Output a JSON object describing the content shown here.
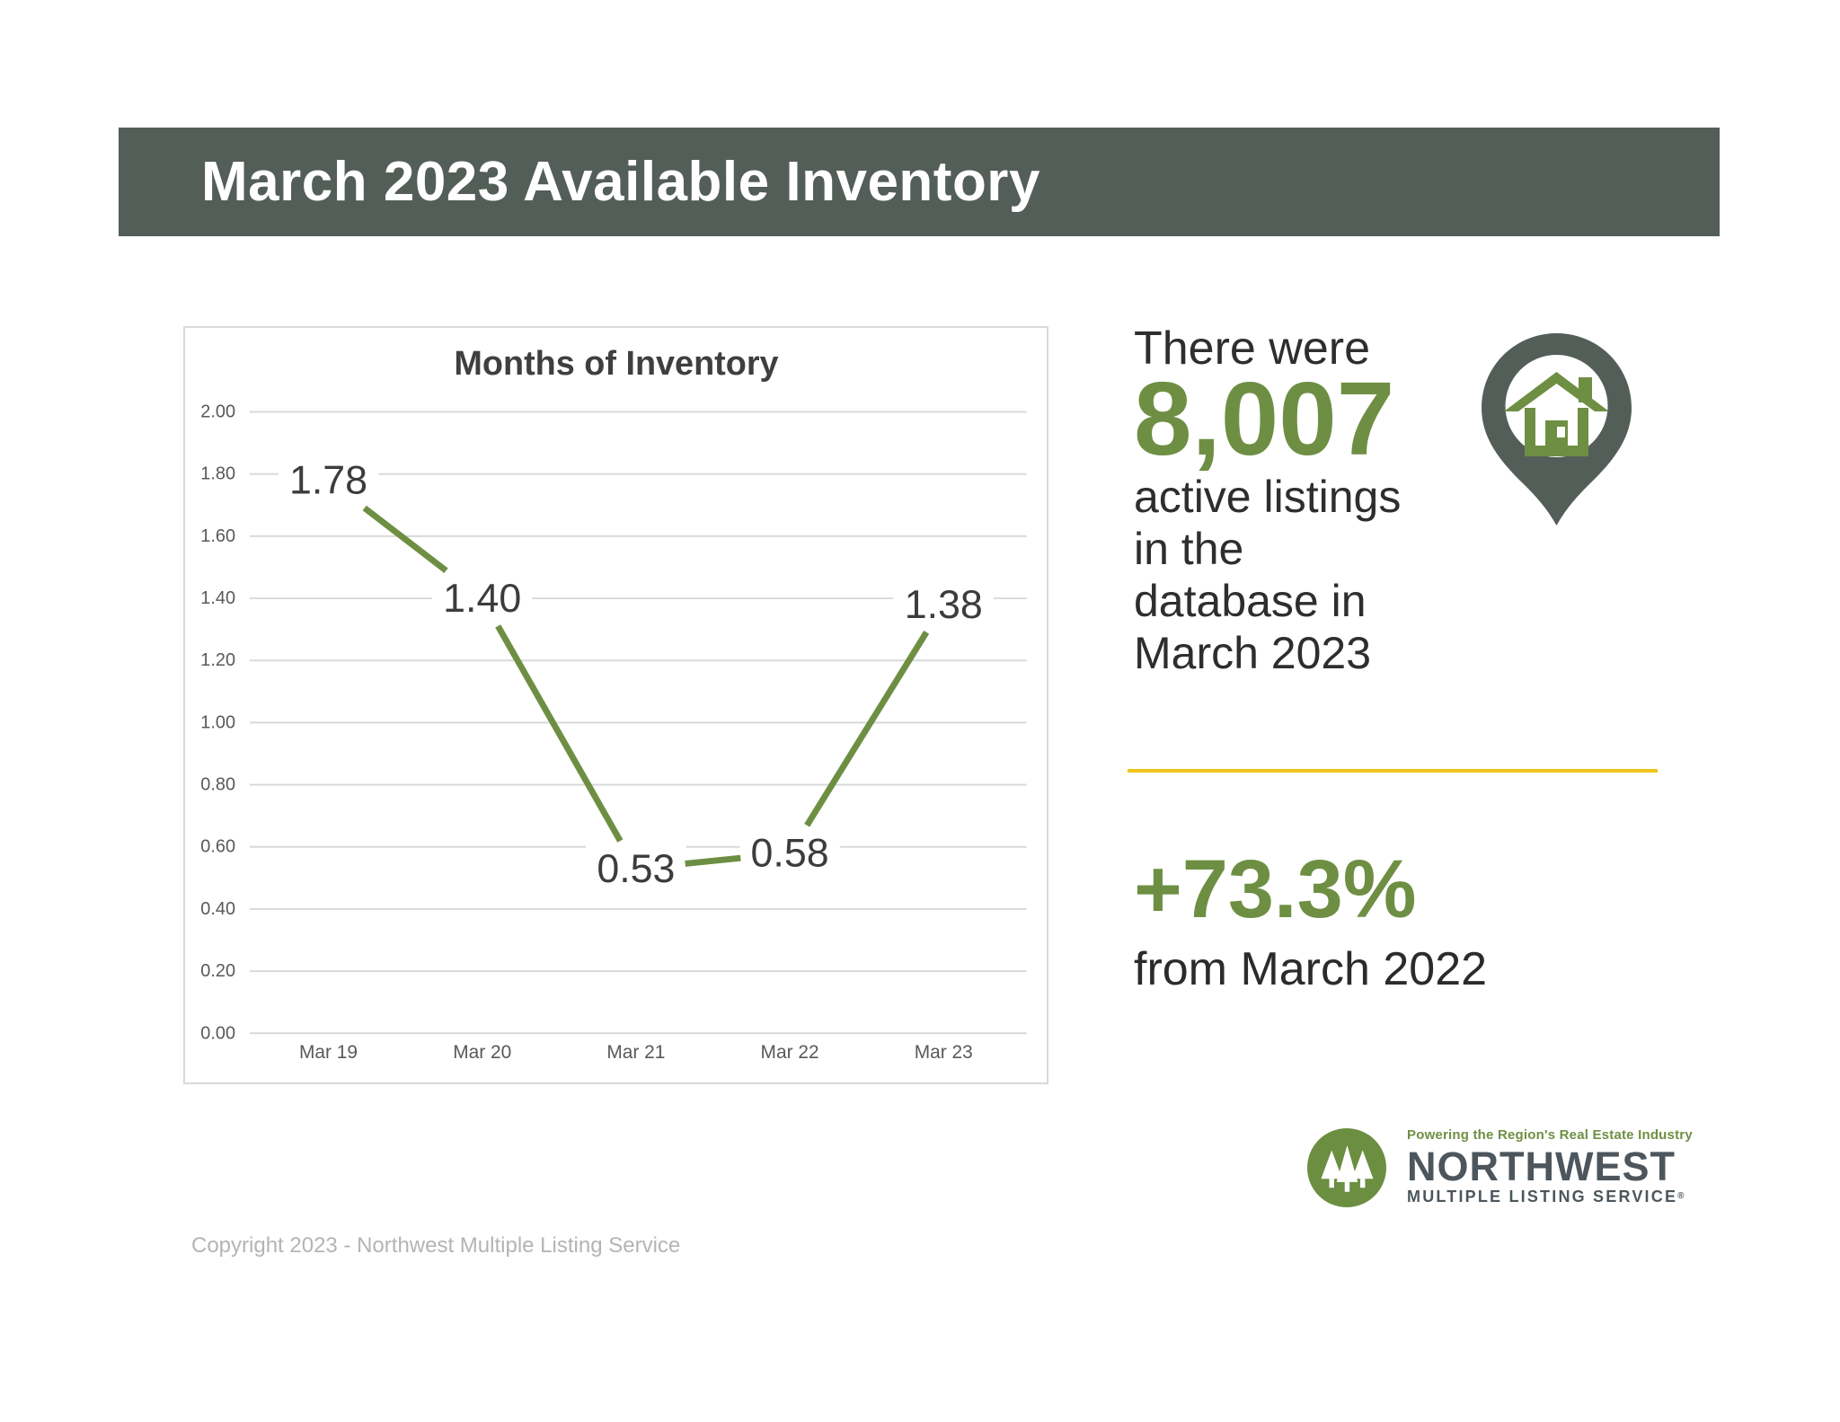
{
  "header": {
    "title": "March 2023 Available Inventory"
  },
  "chart_data": {
    "type": "line",
    "title": "Months of Inventory",
    "categories": [
      "Mar 19",
      "Mar 20",
      "Mar 21",
      "Mar 22",
      "Mar 23"
    ],
    "values": [
      1.78,
      1.4,
      0.53,
      0.58,
      1.38
    ],
    "xlabel": "",
    "ylabel": "",
    "ylim": [
      0,
      2.0
    ],
    "ytick_step": 0.2,
    "grid": true,
    "legend_position": "none",
    "line_color": "#6e8f43",
    "data_label_color": "#3c3c3c",
    "axis_text_color": "#595959",
    "grid_color": "#d9d9d9",
    "title_color": "#3f3f3f"
  },
  "stats": {
    "intro": "There were",
    "count": "8,007",
    "lines": [
      "active listings",
      "in the",
      "database in",
      "March 2023"
    ]
  },
  "change": {
    "value": "+73.3%",
    "caption": "from March 2022"
  },
  "logo": {
    "tagline": "Powering the Region's Real Estate Industry",
    "name": "NORTHWEST",
    "subtitle": "MULTIPLE LISTING SERVICE",
    "registered_mark": "®"
  },
  "footer": {
    "copyright": "Copyright 2023 - Northwest Multiple Listing Service"
  },
  "colors": {
    "header_bar": "#545e58",
    "accent_green": "#6e8f43",
    "divider_yellow": "#edc51c",
    "pin_gray": "#545e58",
    "text_dark": "#2e2e2e",
    "logo_text": "#4c565c",
    "copyright_gray": "#b4b4b4"
  }
}
